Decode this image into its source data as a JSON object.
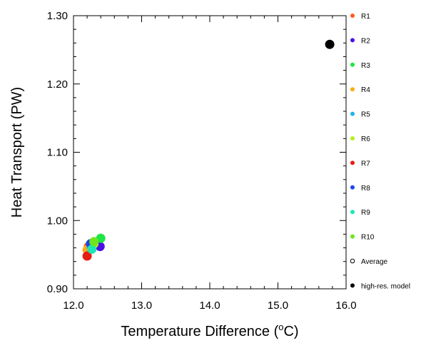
{
  "chart_data": {
    "type": "scatter",
    "title": "",
    "xlabel_prefix": "Temperature Difference (",
    "xlabel_unit_sup": "o",
    "xlabel_unit": "C)",
    "ylabel": "Heat Transport (PW)",
    "xlim": [
      12.0,
      16.0
    ],
    "ylim": [
      0.9,
      1.3
    ],
    "x_ticks": [
      12.0,
      13.0,
      14.0,
      15.0,
      16.0
    ],
    "x_tick_labels": [
      "12.0",
      "13.0",
      "14.0",
      "15.0",
      "16.0"
    ],
    "y_ticks": [
      0.9,
      1.0,
      1.1,
      1.2,
      1.3
    ],
    "y_tick_labels": [
      "0.90",
      "1.00",
      "1.10",
      "1.20",
      "1.30"
    ],
    "grid": false,
    "legend_position": "right",
    "series": [
      {
        "name": "R1",
        "color": "#ff5a1e",
        "x": 12.22,
        "y": 0.962
      },
      {
        "name": "R2",
        "color": "#4b10e6",
        "x": 12.39,
        "y": 0.962
      },
      {
        "name": "R3",
        "color": "#1ee646",
        "x": 12.4,
        "y": 0.974
      },
      {
        "name": "R4",
        "color": "#ffaa14",
        "x": 12.2,
        "y": 0.957
      },
      {
        "name": "R5",
        "color": "#1eb4f0",
        "x": 12.26,
        "y": 0.962
      },
      {
        "name": "R6",
        "color": "#b4f01e",
        "x": 12.3,
        "y": 0.966
      },
      {
        "name": "R7",
        "color": "#e61e14",
        "x": 12.2,
        "y": 0.948
      },
      {
        "name": "R8",
        "color": "#1e46e6",
        "x": 12.25,
        "y": 0.966
      },
      {
        "name": "R9",
        "color": "#1ee6b4",
        "x": 12.27,
        "y": 0.958
      },
      {
        "name": "R10",
        "color": "#6ee61e",
        "x": 12.3,
        "y": 0.969
      },
      {
        "name": "Average",
        "color": "#000000",
        "marker": "hollow"
      },
      {
        "name": "high-res. model",
        "color": "#000000",
        "x": 15.76,
        "y": 1.258
      }
    ]
  }
}
